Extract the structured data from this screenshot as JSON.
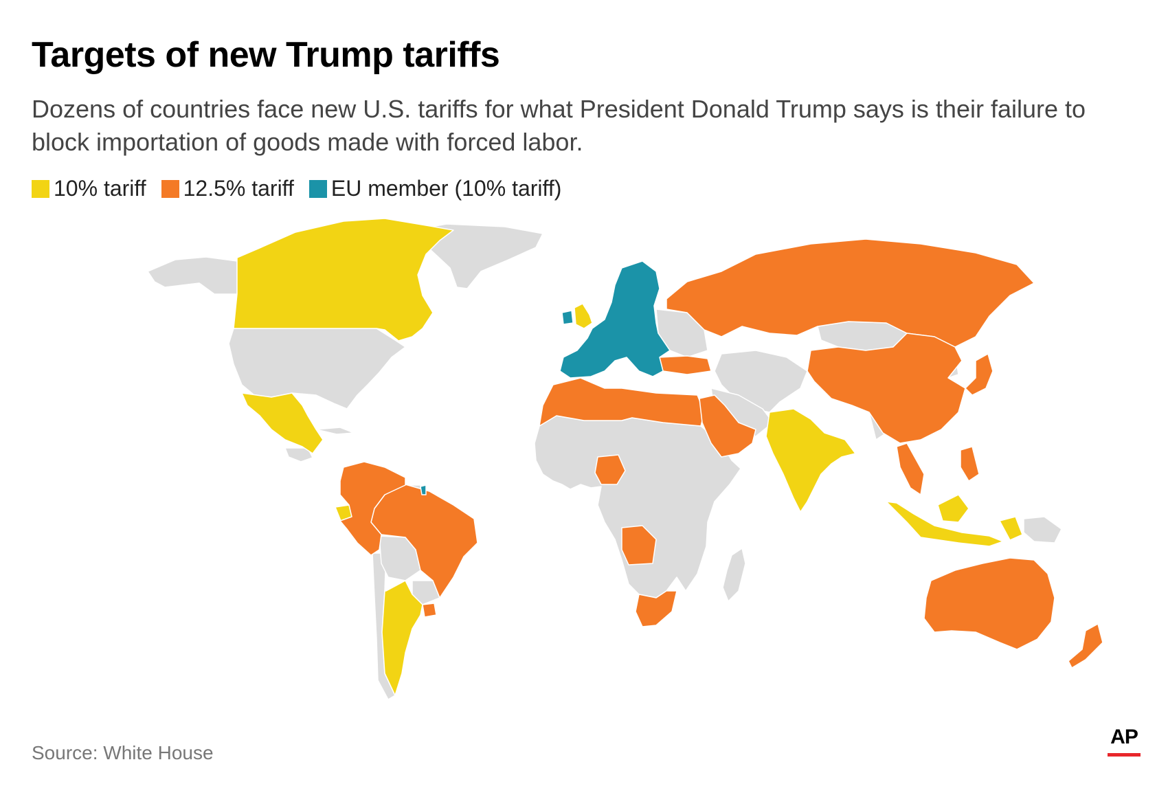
{
  "title": "Targets of new Trump tariffs",
  "subtitle": "Dozens of countries face new U.S. tariffs for what President Donald Trump says is their failure to block importation of goods made with forced labor.",
  "legend": [
    {
      "label": "10% tariff",
      "color": "#f2d414"
    },
    {
      "label": "12.5% tariff",
      "color": "#f47a26"
    },
    {
      "label": "EU member (10% tariff)",
      "color": "#1b93a8"
    }
  ],
  "colors": {
    "other": "#dcdcdc",
    "border": "#ffffff"
  },
  "map": {
    "regions": [
      {
        "name": "Canada",
        "category": "10% tariff"
      },
      {
        "name": "Mexico",
        "category": "10% tariff"
      },
      {
        "name": "Argentina",
        "category": "10% tariff"
      },
      {
        "name": "India",
        "category": "10% tariff"
      },
      {
        "name": "United Kingdom",
        "category": "10% tariff"
      },
      {
        "name": "Indonesia",
        "category": "10% tariff"
      },
      {
        "name": "Ecuador",
        "category": "10% tariff"
      },
      {
        "name": "Russia",
        "category": "12.5% tariff"
      },
      {
        "name": "China",
        "category": "12.5% tariff"
      },
      {
        "name": "Brazil",
        "category": "12.5% tariff"
      },
      {
        "name": "Australia",
        "category": "12.5% tariff"
      },
      {
        "name": "Saudi Arabia",
        "category": "12.5% tariff"
      },
      {
        "name": "Algeria",
        "category": "12.5% tariff"
      },
      {
        "name": "South Africa",
        "category": "12.5% tariff"
      },
      {
        "name": "Angola",
        "category": "12.5% tariff"
      },
      {
        "name": "Nigeria",
        "category": "12.5% tariff"
      },
      {
        "name": "Japan",
        "category": "12.5% tariff"
      },
      {
        "name": "New Zealand",
        "category": "12.5% tariff"
      },
      {
        "name": "European Union",
        "category": "EU member (10% tariff)"
      }
    ]
  },
  "source": "Source: White House",
  "logo": "AP"
}
